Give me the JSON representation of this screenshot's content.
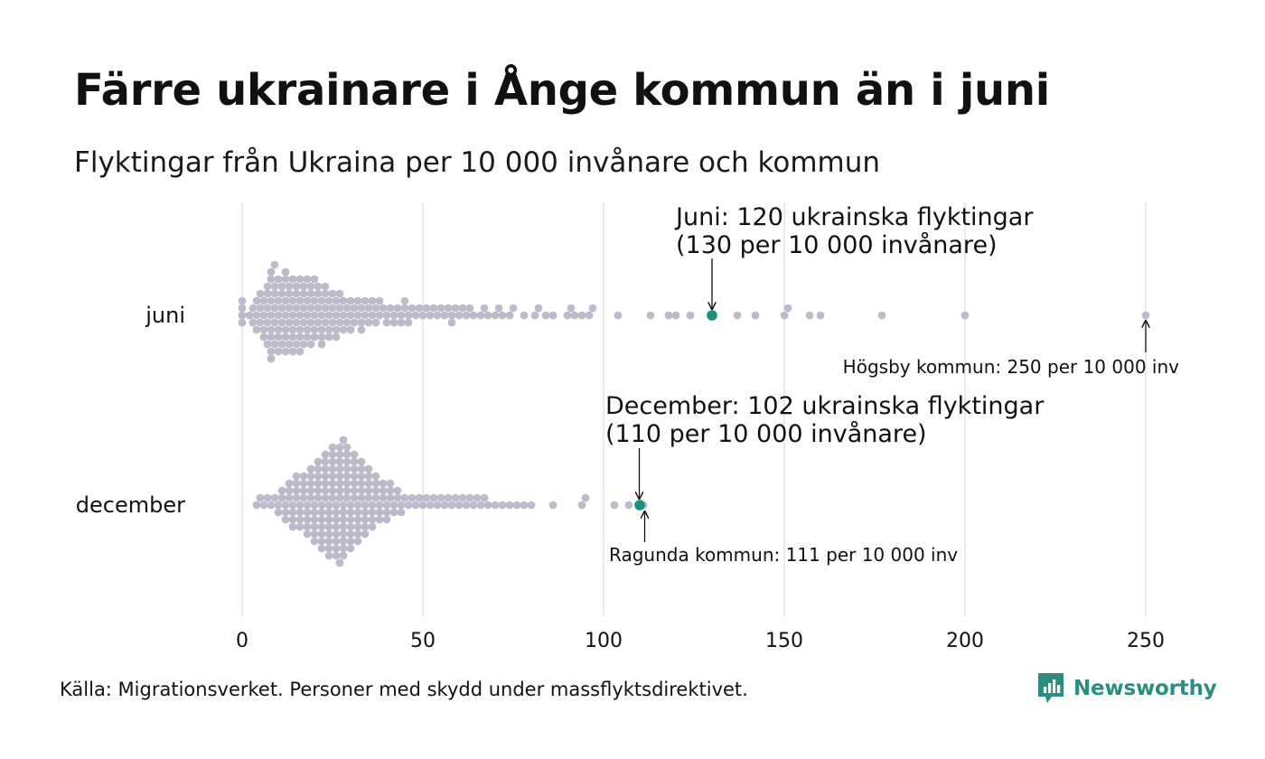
{
  "header": {
    "title": "Färre ukrainare i Ånge kommun än i juni",
    "subtitle": "Flyktingar från Ukraina per 10 000 invånare och kommun"
  },
  "footer": {
    "source": "Källa: Migrationsverket. Personer med skydd under massflyktsdirektivet.",
    "brand": "Newsworthy"
  },
  "colors": {
    "dot": "#bdbacb",
    "highlight": "#17917f",
    "grid": "#d4d4d4",
    "brand": "#2a8c82"
  },
  "chart_data": {
    "type": "scatter",
    "subtype": "beeswarm",
    "xlim": [
      0,
      260
    ],
    "x_ticks": [
      0,
      50,
      100,
      150,
      200,
      250
    ],
    "grid": true,
    "series": [
      {
        "name": "juni",
        "highlight_value": 130,
        "values": [
          0,
          0,
          0,
          0,
          2,
          3,
          3,
          4,
          4,
          4,
          5,
          5,
          5,
          6,
          6,
          6,
          6,
          7,
          7,
          7,
          7,
          7,
          8,
          8,
          8,
          8,
          8,
          8,
          8,
          8,
          9,
          9,
          9,
          9,
          9,
          9,
          10,
          10,
          10,
          10,
          10,
          10,
          11,
          11,
          11,
          11,
          11,
          12,
          12,
          12,
          12,
          12,
          12,
          12,
          13,
          13,
          13,
          13,
          13,
          14,
          14,
          14,
          14,
          14,
          14,
          15,
          15,
          15,
          15,
          15,
          16,
          16,
          16,
          16,
          16,
          16,
          17,
          17,
          17,
          17,
          17,
          18,
          18,
          18,
          18,
          18,
          19,
          19,
          19,
          19,
          19,
          20,
          20,
          20,
          20,
          20,
          21,
          21,
          21,
          21,
          22,
          22,
          22,
          22,
          22,
          23,
          23,
          23,
          23,
          24,
          24,
          24,
          24,
          25,
          25,
          25,
          26,
          26,
          26,
          26,
          27,
          27,
          27,
          28,
          28,
          28,
          29,
          29,
          30,
          30,
          30,
          31,
          31,
          32,
          32,
          33,
          33,
          33,
          34,
          34,
          35,
          35,
          36,
          36,
          37,
          37,
          38,
          38,
          39,
          40,
          40,
          41,
          42,
          42,
          43,
          44,
          44,
          45,
          45,
          46,
          46,
          47,
          48,
          49,
          50,
          51,
          52,
          53,
          54,
          55,
          56,
          57,
          58,
          58,
          59,
          60,
          61,
          62,
          63,
          64,
          66,
          67,
          68,
          70,
          71,
          72,
          74,
          75,
          78,
          81,
          82,
          84,
          86,
          90,
          91,
          92,
          94,
          96,
          97,
          104,
          113,
          118,
          120,
          124,
          137,
          142,
          150,
          151,
          157,
          160,
          177,
          200,
          250
        ]
      },
      {
        "name": "december",
        "highlight_value": 110,
        "values": [
          4,
          5,
          6,
          7,
          8,
          9,
          10,
          10,
          11,
          11,
          12,
          12,
          12,
          13,
          13,
          13,
          14,
          14,
          14,
          14,
          15,
          15,
          15,
          15,
          16,
          16,
          16,
          16,
          17,
          17,
          17,
          17,
          18,
          18,
          18,
          18,
          18,
          19,
          19,
          19,
          19,
          19,
          20,
          20,
          20,
          20,
          20,
          20,
          21,
          21,
          21,
          21,
          21,
          21,
          22,
          22,
          22,
          22,
          22,
          22,
          22,
          23,
          23,
          23,
          23,
          23,
          23,
          23,
          24,
          24,
          24,
          24,
          24,
          24,
          24,
          24,
          25,
          25,
          25,
          25,
          25,
          25,
          25,
          25,
          26,
          26,
          26,
          26,
          26,
          26,
          26,
          26,
          27,
          27,
          27,
          27,
          27,
          27,
          27,
          27,
          27,
          28,
          28,
          28,
          28,
          28,
          28,
          28,
          28,
          28,
          29,
          29,
          29,
          29,
          29,
          29,
          29,
          29,
          30,
          30,
          30,
          30,
          30,
          30,
          30,
          31,
          31,
          31,
          31,
          31,
          31,
          31,
          32,
          32,
          32,
          32,
          32,
          32,
          33,
          33,
          33,
          33,
          33,
          33,
          34,
          34,
          34,
          34,
          34,
          35,
          35,
          35,
          35,
          35,
          36,
          36,
          36,
          36,
          37,
          37,
          37,
          37,
          38,
          38,
          38,
          39,
          39,
          39,
          40,
          40,
          40,
          41,
          41,
          41,
          42,
          42,
          43,
          43,
          44,
          44,
          45,
          46,
          47,
          48,
          49,
          50,
          51,
          52,
          53,
          54,
          55,
          56,
          57,
          58,
          59,
          60,
          61,
          62,
          63,
          64,
          65,
          66,
          67,
          68,
          70,
          72,
          74,
          76,
          78,
          80,
          86,
          94,
          95,
          103,
          107,
          111
        ]
      }
    ],
    "annotations": [
      {
        "id": "juni-highlight",
        "series": "juni",
        "x": 130,
        "lines": [
          "Juni: 120 ukrainska flyktingar",
          "(130 per 10 000 invånare)"
        ]
      },
      {
        "id": "juni-max",
        "series": "juni",
        "x": 250,
        "lines": [
          "Högsby kommun: 250 per 10 000 inv"
        ]
      },
      {
        "id": "december-highlight",
        "series": "december",
        "x": 110,
        "lines": [
          "December: 102 ukrainska flyktingar",
          "(110 per 10 000 invånare)"
        ]
      },
      {
        "id": "december-max",
        "series": "december",
        "x": 111,
        "lines": [
          "Ragunda kommun: 111 per 10 000 inv"
        ]
      }
    ]
  }
}
